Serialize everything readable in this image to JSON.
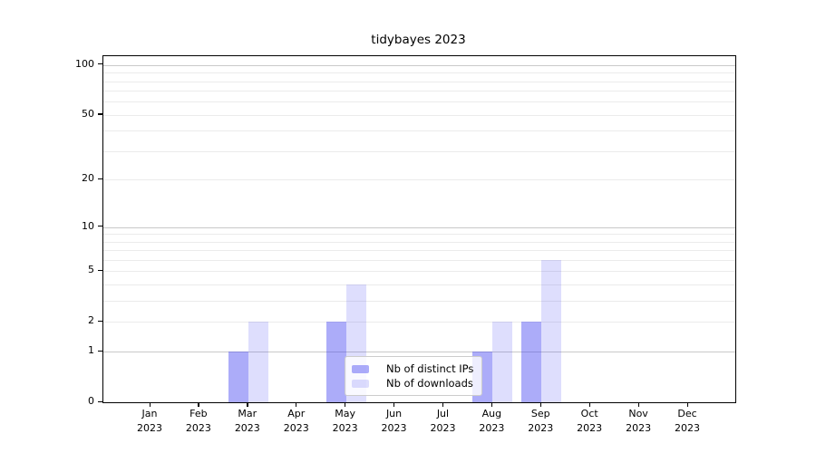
{
  "chart_data": {
    "type": "bar",
    "title": "tidybayes 2023",
    "categories": [
      "Jan",
      "Feb",
      "Mar",
      "Apr",
      "May",
      "Jun",
      "Jul",
      "Aug",
      "Sep",
      "Oct",
      "Nov",
      "Dec"
    ],
    "category_year": "2023",
    "series": [
      {
        "name": "Nb of distinct IPs",
        "color": "rgba(70,70,242,0.45)",
        "values": [
          0,
          0,
          1,
          0,
          2,
          0,
          0,
          1,
          2,
          0,
          0,
          0
        ]
      },
      {
        "name": "Nb of downloads",
        "color": "rgba(70,70,242,0.18)",
        "values": [
          0,
          0,
          2,
          0,
          4,
          0,
          0,
          2,
          6,
          0,
          0,
          0
        ]
      }
    ],
    "y_scale": "log1p",
    "y_ticks": [
      0,
      1,
      2,
      5,
      10,
      20,
      50,
      100
    ],
    "y_max": 113,
    "xlabel": "",
    "ylabel": "",
    "grid": "horizontal",
    "grid_major_values": [
      1,
      10,
      100
    ],
    "grid_minor_values": [
      2,
      3,
      4,
      5,
      6,
      7,
      8,
      9,
      20,
      30,
      40,
      50,
      60,
      70,
      80,
      90
    ],
    "legend_position": "lower center",
    "colors": {
      "grid_major": "#c9c9c9",
      "grid_minor": "#ebebeb",
      "spine": "#000000",
      "background": "#ffffff"
    }
  }
}
